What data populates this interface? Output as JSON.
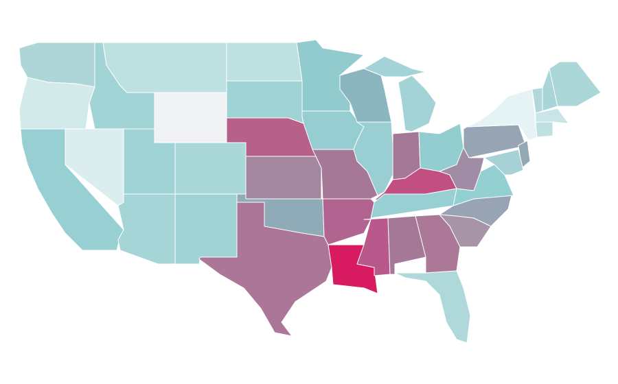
{
  "map": {
    "region_colors": [
      "#aed6d8",
      "#d3eaeb",
      "#97cfd2",
      "#dcedf0",
      "#a2d4d6",
      "#bde0e1",
      "#f1f2f4",
      "#9fd3d6",
      "#aad8d9",
      "#a5d5d7",
      "#a1d3d6",
      "#bde0e1",
      "#9fd3d6",
      "#b6608a",
      "#a3879f",
      "#8fabb7",
      "#ab7698",
      "#91cbcd",
      "#96cdd0",
      "#a67897",
      "#b16490",
      "#d81b60",
      "#8bb6bf",
      "#99cfd2",
      "#a3d3d6",
      "#a3d3d6",
      "#a67897",
      "#92cdcf",
      "#c24f82",
      "#97cfd2",
      "#b9588a",
      "#a67897",
      "#ab7898",
      "#aed8da",
      "#a794a6",
      "#98a4b4",
      "#94cfd2",
      "#a08ca4",
      "#96a4b3",
      "#e6f3f4",
      "#93a7b5",
      "#a7d1d5",
      "#b0d7da",
      "#a8d5d8",
      "#acd7d9",
      "#c9e5e7",
      "#bfe0e2"
    ]
  }
}
